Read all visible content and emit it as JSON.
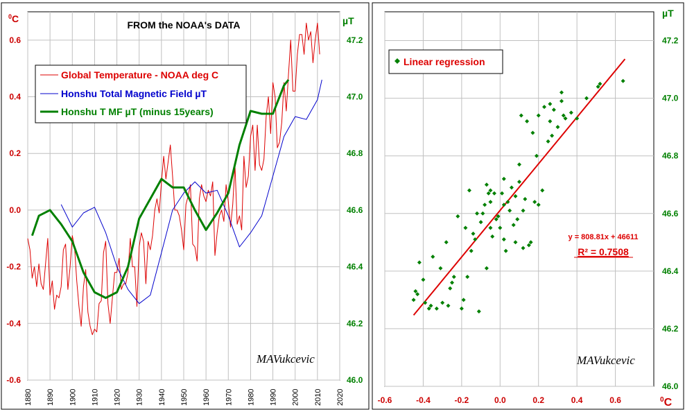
{
  "chart_data": [
    {
      "type": "line",
      "title": "FROM the NOAA's DATA",
      "left_unit_label": "0C",
      "right_unit_label": "µT",
      "signature": "MAVukcevic",
      "xlim": [
        1880,
        2020
      ],
      "xticks": [
        1880,
        1890,
        1900,
        1910,
        1920,
        1930,
        1940,
        1950,
        1960,
        1970,
        1980,
        1990,
        2000,
        2010,
        2020
      ],
      "ylim_left": [
        -0.6,
        0.7
      ],
      "yticks_left": [
        "0.6",
        "0.4",
        "0.2",
        "0.0",
        "-0.2",
        "-0.4",
        "-0.6"
      ],
      "ylim_right": [
        46.0,
        47.3
      ],
      "yticks_right": [
        "47.2",
        "47.0",
        "46.8",
        "46.6",
        "46.4",
        "46.2",
        "46.0"
      ],
      "grid": true,
      "legend_position": "top-left",
      "colors": {
        "temperature": "#dd0000",
        "field": "#0000cc",
        "shifted": "#008000",
        "axis_left": "#cc0000",
        "axis_right": "#008000"
      },
      "series": [
        {
          "name": "Global Temperature - NOAA deg C",
          "axis": "left",
          "x": [
            1880,
            1881,
            1882,
            1883,
            1884,
            1885,
            1886,
            1887,
            1888,
            1889,
            1890,
            1891,
            1892,
            1893,
            1894,
            1895,
            1896,
            1897,
            1898,
            1899,
            1900,
            1901,
            1902,
            1903,
            1904,
            1905,
            1906,
            1907,
            1908,
            1909,
            1910,
            1911,
            1912,
            1913,
            1914,
            1915,
            1916,
            1917,
            1918,
            1919,
            1920,
            1921,
            1922,
            1923,
            1924,
            1925,
            1926,
            1927,
            1928,
            1929,
            1930,
            1931,
            1932,
            1933,
            1934,
            1935,
            1936,
            1937,
            1938,
            1939,
            1940,
            1941,
            1942,
            1943,
            1944,
            1945,
            1946,
            1947,
            1948,
            1949,
            1950,
            1951,
            1952,
            1953,
            1954,
            1955,
            1956,
            1957,
            1958,
            1959,
            1960,
            1961,
            1962,
            1963,
            1964,
            1965,
            1966,
            1967,
            1968,
            1969,
            1970,
            1971,
            1972,
            1973,
            1974,
            1975,
            1976,
            1977,
            1978,
            1979,
            1980,
            1981,
            1982,
            1983,
            1984,
            1985,
            1986,
            1987,
            1988,
            1989,
            1990,
            1991,
            1992,
            1993,
            1994,
            1995,
            1996,
            1997,
            1998,
            1999,
            2000,
            2001,
            2002,
            2003,
            2004,
            2005,
            2006,
            2007,
            2008,
            2009,
            2010,
            2011
          ],
          "values": [
            -0.1,
            -0.14,
            -0.24,
            -0.2,
            -0.27,
            -0.19,
            -0.26,
            -0.28,
            -0.19,
            -0.1,
            -0.3,
            -0.25,
            -0.35,
            -0.3,
            -0.31,
            -0.27,
            -0.14,
            -0.12,
            -0.28,
            -0.2,
            -0.09,
            -0.13,
            -0.25,
            -0.34,
            -0.41,
            -0.27,
            -0.21,
            -0.36,
            -0.41,
            -0.44,
            -0.42,
            -0.43,
            -0.33,
            -0.32,
            -0.15,
            -0.11,
            -0.33,
            -0.4,
            -0.31,
            -0.22,
            -0.22,
            -0.17,
            -0.28,
            -0.26,
            -0.26,
            -0.22,
            -0.1,
            -0.2,
            -0.2,
            -0.34,
            -0.13,
            -0.08,
            -0.11,
            -0.26,
            -0.11,
            -0.14,
            -0.09,
            0.0,
            0.04,
            -0.01,
            0.1,
            0.19,
            0.11,
            0.17,
            0.23,
            0.12,
            0.0,
            0.0,
            -0.02,
            -0.07,
            -0.14,
            0.02,
            0.05,
            0.09,
            -0.12,
            -0.13,
            -0.18,
            0.04,
            0.09,
            0.05,
            0.03,
            0.07,
            0.05,
            0.1,
            -0.16,
            -0.08,
            -0.02,
            0.0,
            -0.04,
            0.09,
            0.03,
            -0.06,
            0.02,
            0.16,
            -0.05,
            -0.02,
            -0.07,
            0.19,
            0.08,
            0.12,
            0.26,
            0.3,
            0.14,
            0.3,
            0.16,
            0.14,
            0.18,
            0.33,
            0.4,
            0.27,
            0.45,
            0.4,
            0.22,
            0.24,
            0.31,
            0.45,
            0.35,
            0.48,
            0.6,
            0.42,
            0.42,
            0.55,
            0.62,
            0.62,
            0.55,
            0.66,
            0.6,
            0.63,
            0.52,
            0.6,
            0.66,
            0.55
          ]
        },
        {
          "name": "Honshu Total Magnetic Field  µT",
          "axis": "right",
          "x": [
            1895,
            1900,
            1905,
            1910,
            1915,
            1920,
            1925,
            1930,
            1935,
            1940,
            1945,
            1950,
            1955,
            1960,
            1965,
            1970,
            1975,
            1980,
            1985,
            1990,
            1995,
            2000,
            2005,
            2010,
            2012
          ],
          "values": [
            46.62,
            46.54,
            46.59,
            46.61,
            46.52,
            46.4,
            46.32,
            46.27,
            46.3,
            46.45,
            46.6,
            46.66,
            46.7,
            46.66,
            46.67,
            46.58,
            46.47,
            46.52,
            46.58,
            46.72,
            46.86,
            46.93,
            46.92,
            46.99,
            47.06
          ]
        },
        {
          "name": "Honshu T MF µT (minus 15years)",
          "axis": "right",
          "x": [
            1882,
            1885,
            1890,
            1895,
            1900,
            1905,
            1910,
            1915,
            1920,
            1925,
            1930,
            1935,
            1940,
            1945,
            1950,
            1955,
            1960,
            1965,
            1970,
            1975,
            1980,
            1985,
            1990,
            1995,
            1997
          ],
          "values": [
            46.51,
            46.58,
            46.6,
            46.55,
            46.49,
            46.38,
            46.31,
            46.29,
            46.31,
            46.4,
            46.57,
            46.64,
            46.71,
            46.68,
            46.68,
            46.6,
            46.53,
            46.59,
            46.66,
            46.83,
            46.95,
            46.94,
            46.94,
            47.04,
            47.06
          ]
        }
      ]
    },
    {
      "type": "scatter",
      "signature": "MAVukcevic",
      "legend_label": "Linear regression",
      "legend_position": "top-left",
      "equation": "y = 808.81x + 46611",
      "r2_label": "R² = 0.7508",
      "xlabel": "0C",
      "ylabel": "µT",
      "xlim": [
        -0.6,
        0.8
      ],
      "xticks": [
        "-0.6",
        "-0.4",
        "-0.2",
        "0.0",
        "0.2",
        "0.4",
        "0.6"
      ],
      "ylim": [
        46.0,
        47.3
      ],
      "yticks": [
        "47.2",
        "47.0",
        "46.8",
        "46.6",
        "46.4",
        "46.2",
        "46.0"
      ],
      "grid": true,
      "colors": {
        "points": "#008000",
        "trend": "#dd0000",
        "axis_x": "#cc0000",
        "axis_y": "#008000"
      },
      "trendline": {
        "x": [
          -0.45,
          0.65
        ],
        "y": [
          46.247,
          47.136
        ]
      },
      "points": [
        [
          -0.45,
          46.3
        ],
        [
          -0.44,
          46.33
        ],
        [
          -0.43,
          46.32
        ],
        [
          -0.42,
          46.43
        ],
        [
          -0.4,
          46.37
        ],
        [
          -0.39,
          46.29
        ],
        [
          -0.37,
          46.27
        ],
        [
          -0.36,
          46.28
        ],
        [
          -0.35,
          46.45
        ],
        [
          -0.33,
          46.27
        ],
        [
          -0.31,
          46.41
        ],
        [
          -0.3,
          46.29
        ],
        [
          -0.28,
          46.5
        ],
        [
          -0.27,
          46.28
        ],
        [
          -0.26,
          46.34
        ],
        [
          -0.25,
          46.36
        ],
        [
          -0.24,
          46.38
        ],
        [
          -0.22,
          46.59
        ],
        [
          -0.2,
          46.27
        ],
        [
          -0.19,
          46.3
        ],
        [
          -0.18,
          46.55
        ],
        [
          -0.17,
          46.38
        ],
        [
          -0.16,
          46.68
        ],
        [
          -0.15,
          46.47
        ],
        [
          -0.14,
          46.53
        ],
        [
          -0.13,
          46.51
        ],
        [
          -0.12,
          46.6
        ],
        [
          -0.11,
          46.26
        ],
        [
          -0.1,
          46.57
        ],
        [
          -0.09,
          46.6
        ],
        [
          -0.08,
          46.63
        ],
        [
          -0.07,
          46.7
        ],
        [
          -0.07,
          46.41
        ],
        [
          -0.06,
          46.67
        ],
        [
          -0.05,
          46.64
        ],
        [
          -0.05,
          46.55
        ],
        [
          -0.04,
          46.52
        ],
        [
          -0.03,
          46.67
        ],
        [
          -0.02,
          46.58
        ],
        [
          -0.01,
          46.59
        ],
        [
          0.0,
          46.55
        ],
        [
          0.01,
          46.67
        ],
        [
          0.02,
          46.63
        ],
        [
          0.02,
          46.51
        ],
        [
          0.03,
          46.47
        ],
        [
          0.04,
          46.64
        ],
        [
          0.05,
          46.61
        ],
        [
          0.06,
          46.69
        ],
        [
          0.07,
          46.56
        ],
        [
          0.08,
          46.5
        ],
        [
          0.09,
          46.58
        ],
        [
          0.1,
          46.71
        ],
        [
          0.1,
          46.77
        ],
        [
          0.11,
          46.94
        ],
        [
          0.12,
          46.48
        ],
        [
          0.12,
          46.61
        ],
        [
          0.13,
          46.65
        ],
        [
          0.14,
          46.92
        ],
        [
          0.15,
          46.49
        ],
        [
          0.16,
          46.5
        ],
        [
          0.17,
          46.88
        ],
        [
          0.18,
          46.64
        ],
        [
          0.19,
          46.8
        ],
        [
          0.2,
          46.63
        ],
        [
          0.2,
          46.94
        ],
        [
          0.22,
          46.68
        ],
        [
          0.23,
          46.97
        ],
        [
          0.25,
          46.85
        ],
        [
          0.26,
          46.92
        ],
        [
          0.27,
          46.87
        ],
        [
          0.28,
          46.96
        ],
        [
          0.3,
          46.9
        ],
        [
          0.32,
          46.99
        ],
        [
          0.32,
          47.02
        ],
        [
          0.33,
          46.94
        ],
        [
          0.34,
          46.93
        ],
        [
          0.37,
          46.95
        ],
        [
          0.4,
          46.93
        ],
        [
          0.45,
          47.0
        ],
        [
          0.51,
          47.04
        ],
        [
          0.52,
          47.05
        ],
        [
          0.64,
          47.06
        ],
        [
          -0.05,
          46.68
        ],
        [
          0.08,
          46.66
        ],
        [
          0.26,
          46.98
        ],
        [
          0.02,
          46.72
        ]
      ]
    }
  ]
}
